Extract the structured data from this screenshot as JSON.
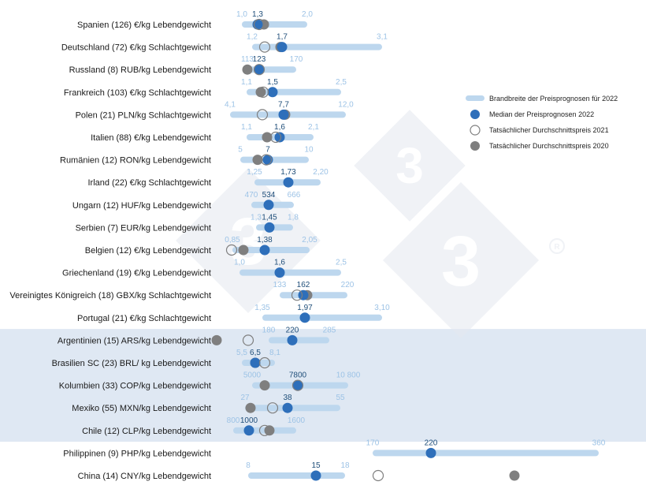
{
  "chart_data": {
    "type": "range-dot",
    "legend": {
      "range": "Brandbreite der Preisprognosen für 2022",
      "median": "Median der Preisprognosen 2022",
      "actual_2021": "Tatsächlicher Durchschnittspreis 2021",
      "actual_2020": "Tatsächlicher Durchschnittspreis 2020",
      "placement": "right"
    },
    "colors": {
      "range": "#bdd7ee",
      "range_label": "#9dc3e6",
      "median": "#2e6fba",
      "median_label": "#1f4e79",
      "actual_2020": "#7f7f7f",
      "actual_2021_stroke": "#7f7f7f",
      "band": "#dfe8f3"
    },
    "shaded_rows": [
      14,
      15,
      16,
      17,
      18
    ],
    "rows": [
      {
        "label": "Spanien (126) €/kg Lebendgewicht",
        "min": "1,0",
        "median": "1,3",
        "max": "2,0"
      },
      {
        "label": "Deutschland (72) €/kg Schlachtgewicht",
        "min": "1,2",
        "median": "1,7",
        "max": "3,1"
      },
      {
        "label": "Russland (8) RUB/kg Lebendgewicht",
        "min": "113",
        "median": "123",
        "max": "170"
      },
      {
        "label": "Frankreich (103) €/kg Schlachtgewicht",
        "min": "1,1",
        "median": "1,5",
        "max": "2,5"
      },
      {
        "label": "Polen (21) PLN/kg Schlachtgewicht",
        "min": "4,1",
        "median": "7,7",
        "max": "12,0"
      },
      {
        "label": "Italien (88) €/kg Lebendgewicht",
        "min": "1,1",
        "median": "1,6",
        "max": "2,1"
      },
      {
        "label": "Rumänien (12) RON/kg Lebendgewicht",
        "min": "5",
        "median": "7",
        "max": "10"
      },
      {
        "label": "Irland (22) €/kg Schlachtgewicht",
        "min": "1,25",
        "median": "1,73",
        "max": "2,20"
      },
      {
        "label": "Ungarn (12) HUF/kg Lebendgewicht",
        "min": "470",
        "median": "534",
        "max": "666"
      },
      {
        "label": "Serbien (7) EUR/kg Lebendgewicht",
        "min": "1,3",
        "median": "1,45",
        "max": "1,8"
      },
      {
        "label": "Belgien (12) €/kg Lebendgewicht",
        "min": "0,85",
        "median": "1,38",
        "max": "2,05"
      },
      {
        "label": "Griechenland (19) €/kg Lebendgewicht",
        "min": "1,0",
        "median": "1,6",
        "max": "2,5"
      },
      {
        "label": "Vereinigtes Königreich (18) GBX/kg Schlachtgewicht",
        "min": "133",
        "median": "162",
        "max": "220"
      },
      {
        "label": "Portugal (21) €/kg Schlachtgewicht",
        "min": "1,35",
        "median": "1,97",
        "max": "3,10"
      },
      {
        "label": "Argentinien (15) ARS/kg Lebendgewicht",
        "min": "180",
        "median": "220",
        "max": "285"
      },
      {
        "label": "Brasilien SC (23) BRL/ kg Lebendgewicht",
        "min": "5,5",
        "median": "6,5",
        "max": "8,1"
      },
      {
        "label": "Kolumbien (33) COP/kg Lebendgewicht",
        "min": "5000",
        "median": "7800",
        "max": "10 800"
      },
      {
        "label": "Mexiko (55) MXN/kg Lebendgewicht",
        "min": "27",
        "median": "38",
        "max": "55"
      },
      {
        "label": "Chile (12) CLP/kg Lebendgewicht",
        "min": "800",
        "median": "1000",
        "max": "1600"
      },
      {
        "label": "Philippinen (9) PHP/kg Lebendgewicht",
        "min": "170",
        "median": "220",
        "max": "360"
      },
      {
        "label": "China (14) CNY/kg Lebendgewicht",
        "min": "8",
        "median": "15",
        "max": "18"
      }
    ]
  }
}
